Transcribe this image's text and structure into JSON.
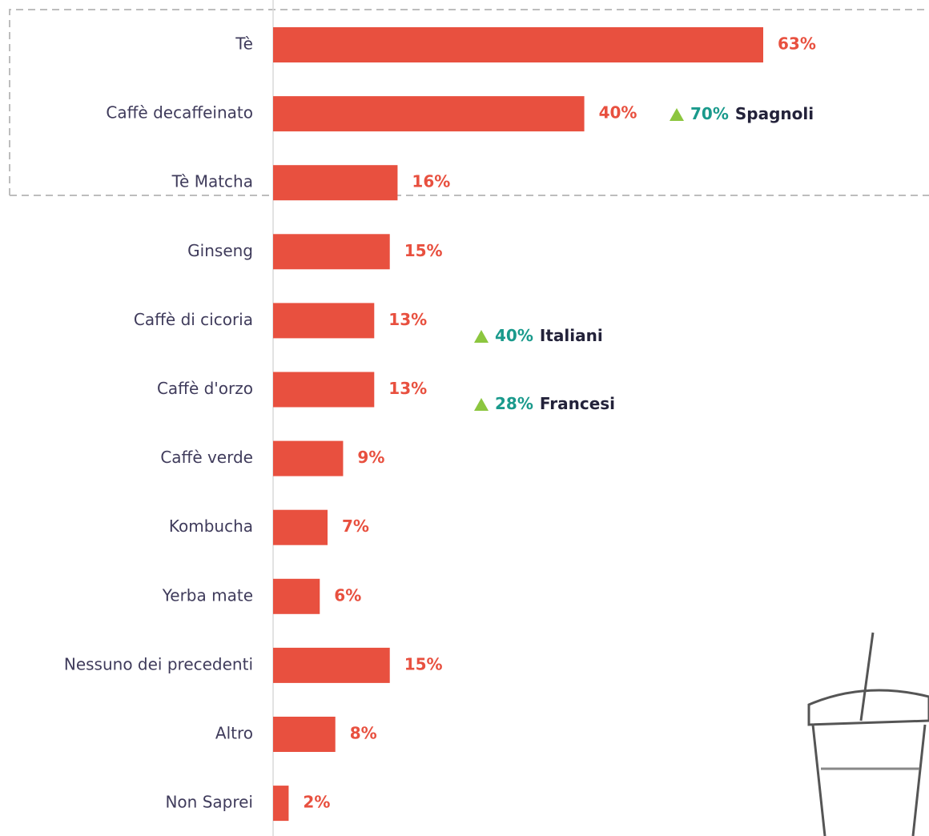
{
  "chart_data": {
    "type": "bar",
    "orientation": "horizontal",
    "color": "#e8503f",
    "categories": [
      "Tè",
      "Caffè decaffeinato",
      "Tè Matcha",
      "Ginseng",
      "Caffè di cicoria",
      "Caffè d'orzo",
      "Caffè verde",
      "Kombucha",
      "Yerba mate",
      "Nessuno dei precedenti",
      "Altro",
      "Non  Saprei"
    ],
    "values": [
      63,
      40,
      16,
      15,
      13,
      13,
      9,
      7,
      6,
      15,
      8,
      2
    ],
    "value_labels": [
      "63%",
      "40%",
      "16%",
      "15%",
      "13%",
      "13%",
      "9%",
      "7%",
      "6%",
      "15%",
      "8%",
      "2%"
    ],
    "annotations": [
      {
        "value": "70%",
        "label": "Spagnoli"
      },
      {
        "value": "40%",
        "label": "Italiani"
      },
      {
        "value": "28%",
        "label": "Francesi"
      }
    ]
  }
}
